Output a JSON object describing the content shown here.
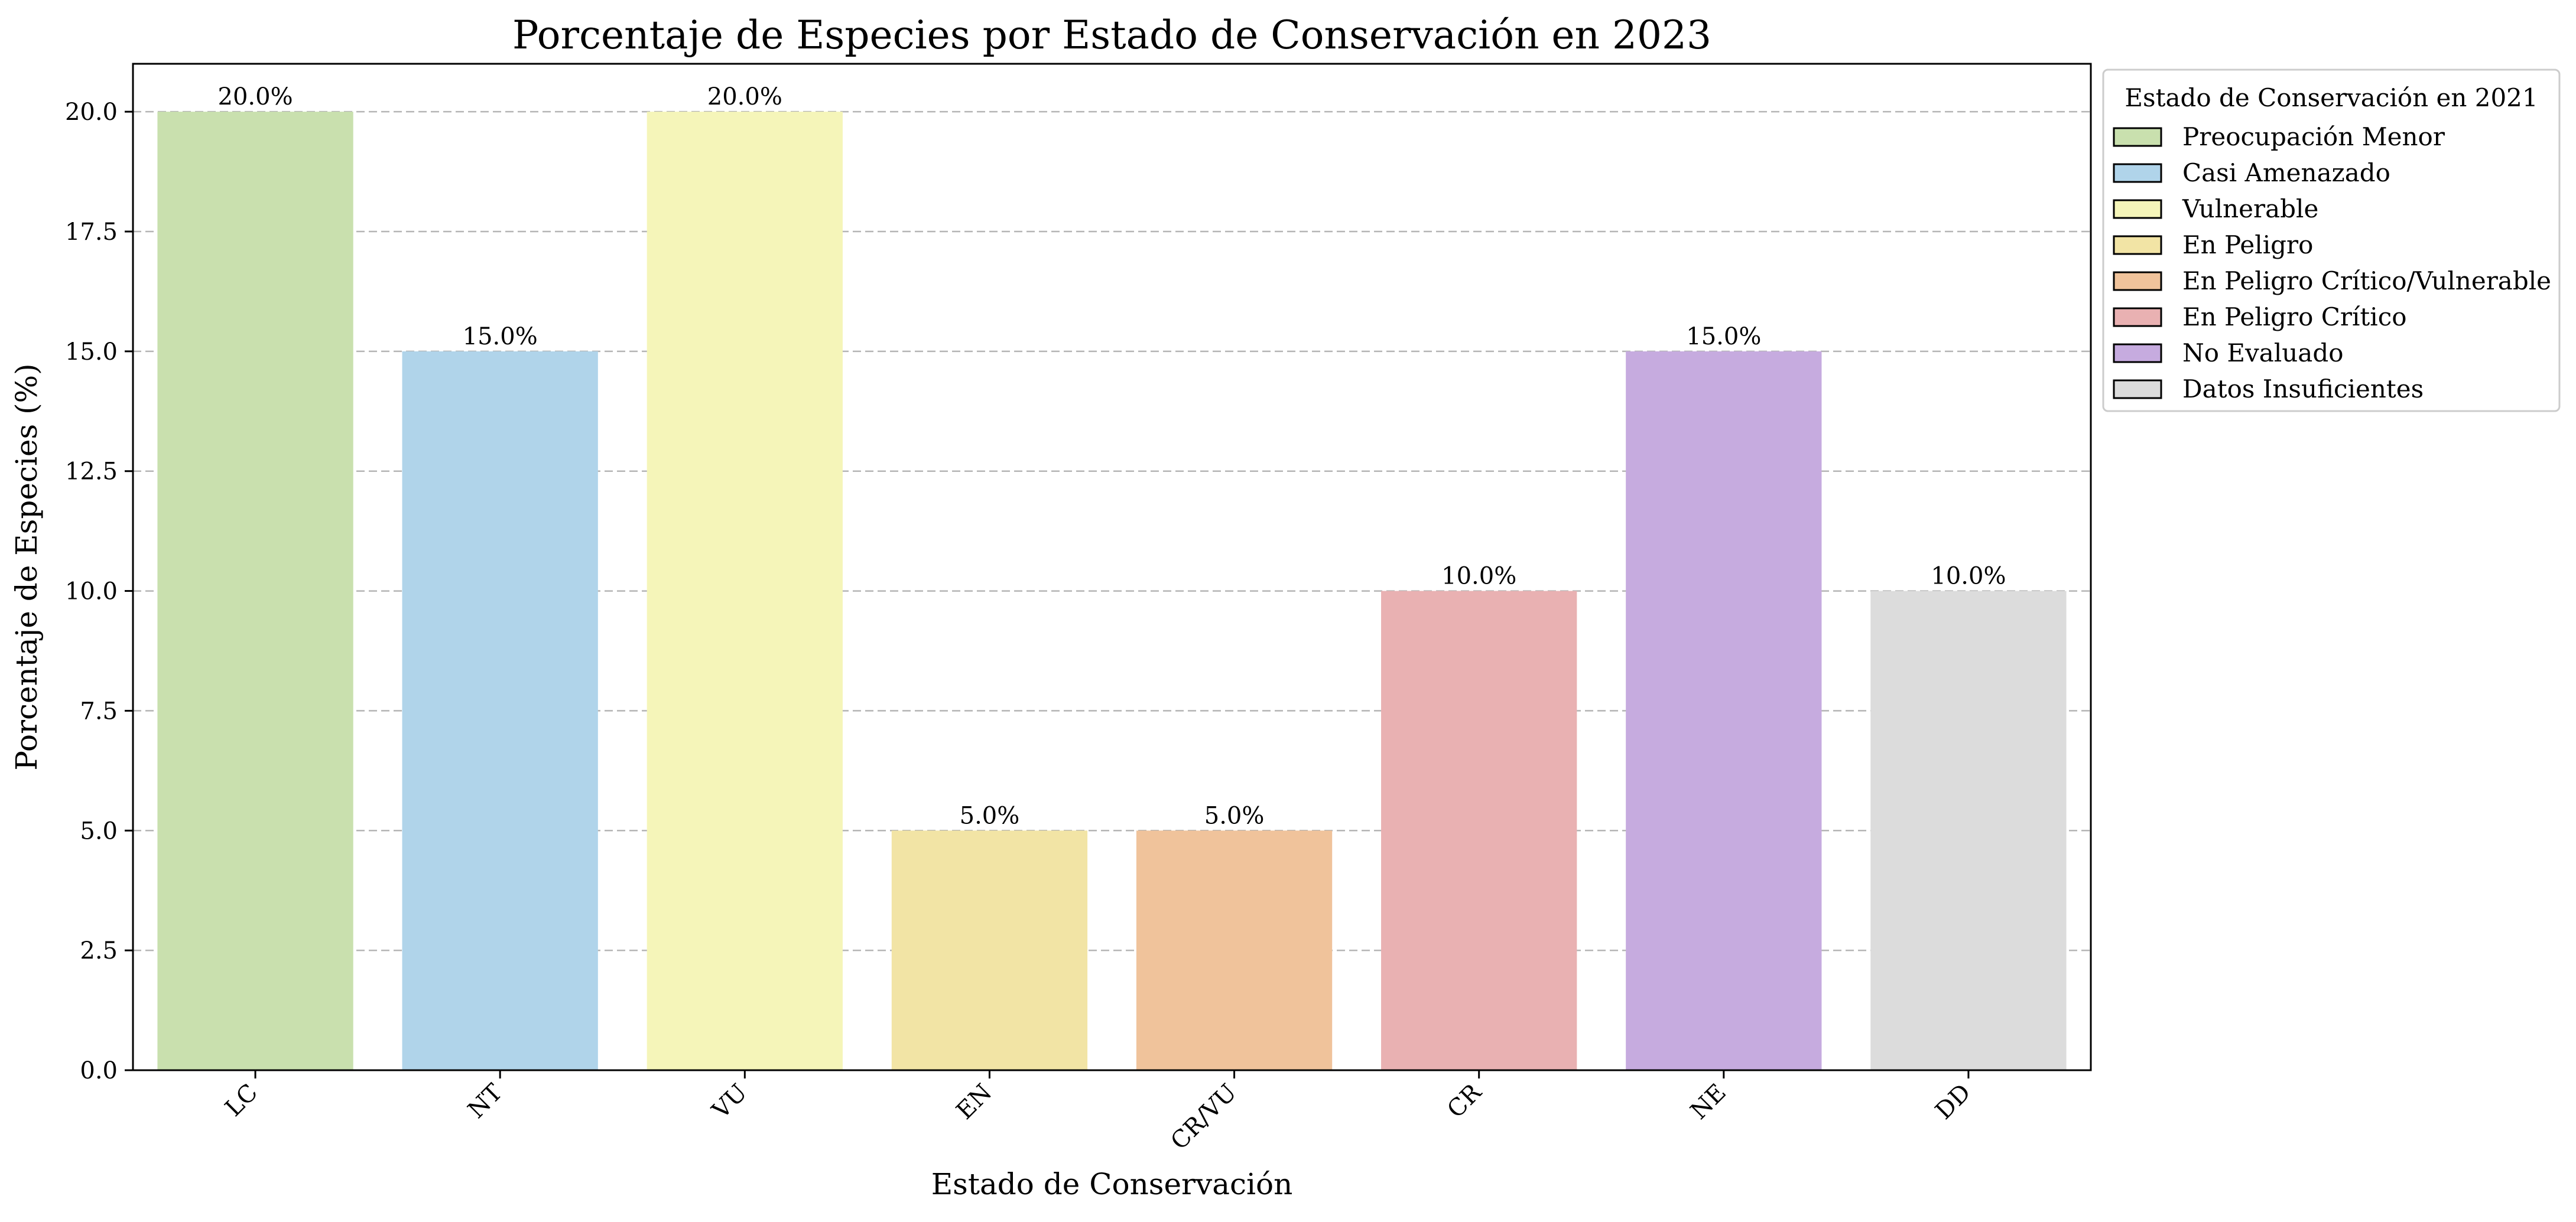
{
  "chart_data": {
    "type": "bar",
    "title": "Porcentaje de Especies por Estado de Conservación en 2023",
    "xlabel": "Estado de Conservación",
    "ylabel": "Porcentaje de Especies (%)",
    "categories": [
      "LC",
      "NT",
      "VU",
      "EN",
      "CR/VU",
      "CR",
      "NE",
      "DD"
    ],
    "values": [
      20.0,
      15.0,
      20.0,
      5.0,
      5.0,
      10.0,
      15.0,
      10.0
    ],
    "data_labels": [
      "20.0%",
      "15.0%",
      "20.0%",
      "5.0%",
      "5.0%",
      "10.0%",
      "15.0%",
      "10.0%"
    ],
    "colors": [
      "#c9e0ae",
      "#b0d4ea",
      "#f5f5b9",
      "#f2e4a5",
      "#f0c39b",
      "#e9b1b2",
      "#c6abdf",
      "#dcdcdc"
    ],
    "ylim": [
      0,
      21
    ],
    "yticks": [
      0.0,
      2.5,
      5.0,
      7.5,
      10.0,
      12.5,
      15.0,
      17.5,
      20.0
    ],
    "ytick_labels": [
      "0.0",
      "2.5",
      "5.0",
      "7.5",
      "10.0",
      "12.5",
      "15.0",
      "17.5",
      "20.0"
    ],
    "grid": "y-dashed",
    "legend": {
      "title": "Estado de Conservación en 2021",
      "placement": "outside-top-right",
      "entries": [
        {
          "label": "Preocupación Menor",
          "color": "#c9e0ae"
        },
        {
          "label": "Casi Amenazado",
          "color": "#b0d4ea"
        },
        {
          "label": "Vulnerable",
          "color": "#f5f5b9"
        },
        {
          "label": "En Peligro",
          "color": "#f2e4a5"
        },
        {
          "label": "En Peligro Crítico/Vulnerable",
          "color": "#f0c39b"
        },
        {
          "label": "En Peligro Crítico",
          "color": "#e9b1b2"
        },
        {
          "label": "No Evaluado",
          "color": "#c6abdf"
        },
        {
          "label": "Datos Insuficientes",
          "color": "#dcdcdc"
        }
      ]
    }
  }
}
